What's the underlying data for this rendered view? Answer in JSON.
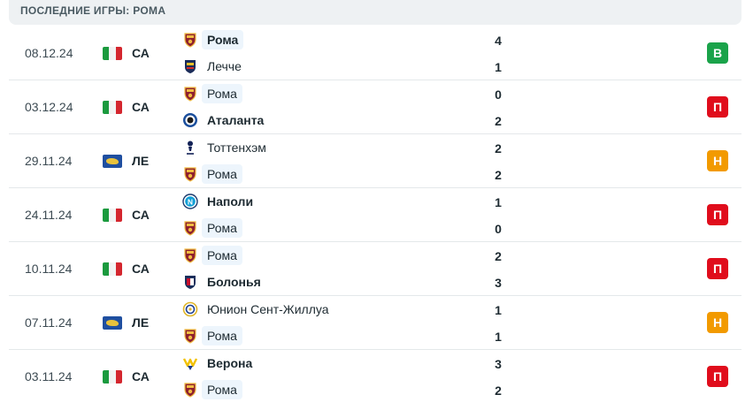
{
  "header": {
    "title": "ПОСЛЕДНИЕ ИГРЫ: РОМА"
  },
  "colors": {
    "win": "#1aa34a",
    "loss": "#e00d1c",
    "draw": "#f29a00"
  },
  "matches": [
    {
      "date": "08.12.24",
      "competition": "СА",
      "flag": "italy-flag-icon",
      "home": {
        "name": "Рома",
        "crest": "roma-crest-icon",
        "score": "4",
        "highlight": true,
        "bold": true
      },
      "away": {
        "name": "Лечче",
        "crest": "lecce-crest-icon",
        "score": "1",
        "highlight": false,
        "bold": false
      },
      "result": "В",
      "result_type": "win"
    },
    {
      "date": "03.12.24",
      "competition": "СА",
      "flag": "italy-flag-icon",
      "home": {
        "name": "Рома",
        "crest": "roma-crest-icon",
        "score": "0",
        "highlight": true,
        "bold": false
      },
      "away": {
        "name": "Аталанта",
        "crest": "atalanta-crest-icon",
        "score": "2",
        "highlight": false,
        "bold": true
      },
      "result": "П",
      "result_type": "loss"
    },
    {
      "date": "29.11.24",
      "competition": "ЛЕ",
      "flag": "europe-flag-icon",
      "home": {
        "name": "Тоттенхэм",
        "crest": "tottenham-crest-icon",
        "score": "2",
        "highlight": false,
        "bold": false
      },
      "away": {
        "name": "Рома",
        "crest": "roma-crest-icon",
        "score": "2",
        "highlight": true,
        "bold": false
      },
      "result": "Н",
      "result_type": "draw"
    },
    {
      "date": "24.11.24",
      "competition": "СА",
      "flag": "italy-flag-icon",
      "home": {
        "name": "Наполи",
        "crest": "napoli-crest-icon",
        "score": "1",
        "highlight": false,
        "bold": true
      },
      "away": {
        "name": "Рома",
        "crest": "roma-crest-icon",
        "score": "0",
        "highlight": true,
        "bold": false
      },
      "result": "П",
      "result_type": "loss"
    },
    {
      "date": "10.11.24",
      "competition": "СА",
      "flag": "italy-flag-icon",
      "home": {
        "name": "Рома",
        "crest": "roma-crest-icon",
        "score": "2",
        "highlight": true,
        "bold": false
      },
      "away": {
        "name": "Болонья",
        "crest": "bologna-crest-icon",
        "score": "3",
        "highlight": false,
        "bold": true
      },
      "result": "П",
      "result_type": "loss"
    },
    {
      "date": "07.11.24",
      "competition": "ЛЕ",
      "flag": "europe-flag-icon",
      "home": {
        "name": "Юнион Сент-Жиллуа",
        "crest": "union-sg-crest-icon",
        "score": "1",
        "highlight": false,
        "bold": false
      },
      "away": {
        "name": "Рома",
        "crest": "roma-crest-icon",
        "score": "1",
        "highlight": true,
        "bold": false
      },
      "result": "Н",
      "result_type": "draw"
    },
    {
      "date": "03.11.24",
      "competition": "СА",
      "flag": "italy-flag-icon",
      "home": {
        "name": "Верона",
        "crest": "verona-crest-icon",
        "score": "3",
        "highlight": false,
        "bold": true
      },
      "away": {
        "name": "Рома",
        "crest": "roma-crest-icon",
        "score": "2",
        "highlight": true,
        "bold": false
      },
      "result": "П",
      "result_type": "loss"
    }
  ]
}
